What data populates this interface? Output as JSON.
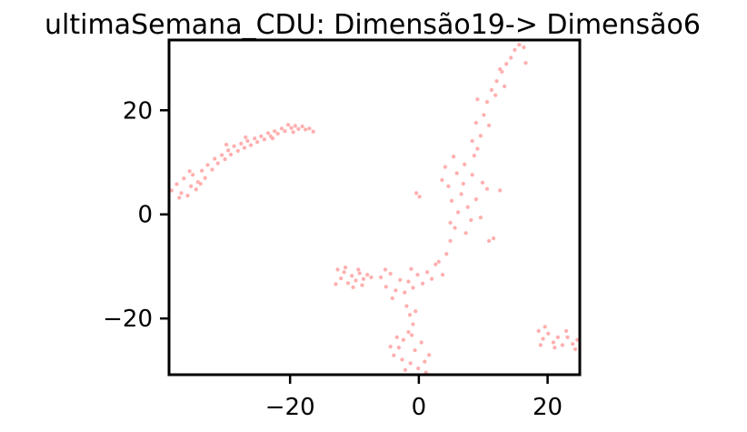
{
  "chart_data": {
    "type": "scatter",
    "title": "ultimaSemana_CDU: Dimensão19-> Dimensão6",
    "xlabel": "",
    "ylabel": "",
    "xlim": [
      -38.8,
      25
    ],
    "ylim": [
      -30.8,
      33.5
    ],
    "grid": false,
    "legend": "none",
    "point_color": "#ff6b6b",
    "x_ticks": [
      {
        "value": -20,
        "label": "−20"
      },
      {
        "value": 0,
        "label": "0"
      },
      {
        "value": 20,
        "label": "20"
      }
    ],
    "y_ticks": [
      {
        "value": -20,
        "label": "−20"
      },
      {
        "value": 0,
        "label": "0"
      },
      {
        "value": 20,
        "label": "20"
      }
    ],
    "points": [
      [
        -38.4,
        4.6
      ],
      [
        -37.6,
        5.8
      ],
      [
        -36.9,
        4.1
      ],
      [
        -36.5,
        6.9
      ],
      [
        -35.9,
        3.6
      ],
      [
        -35.4,
        5.4
      ],
      [
        -35.1,
        7.6
      ],
      [
        -34.6,
        4.8
      ],
      [
        -34.3,
        6.2
      ],
      [
        -33.7,
        8.4
      ],
      [
        -33.2,
        7.0
      ],
      [
        -32.8,
        9.5
      ],
      [
        -32.1,
        8.6
      ],
      [
        -31.7,
        10.7
      ],
      [
        -31.2,
        9.8
      ],
      [
        -30.6,
        11.4
      ],
      [
        -30.1,
        10.6
      ],
      [
        -29.6,
        12.3
      ],
      [
        -29.2,
        11.5
      ],
      [
        -28.7,
        13.1
      ],
      [
        -28.1,
        12.2
      ],
      [
        -27.6,
        13.6
      ],
      [
        -27.1,
        12.8
      ],
      [
        -26.6,
        14.1
      ],
      [
        -26.1,
        13.3
      ],
      [
        -25.5,
        14.6
      ],
      [
        -25.1,
        13.9
      ],
      [
        -24.5,
        15.0
      ],
      [
        -24.0,
        14.4
      ],
      [
        -23.4,
        15.6
      ],
      [
        -23.0,
        15.0
      ],
      [
        -22.4,
        16.0
      ],
      [
        -21.9,
        15.5
      ],
      [
        -21.3,
        16.5
      ],
      [
        -20.8,
        16.0
      ],
      [
        -20.3,
        17.2
      ],
      [
        -19.8,
        16.6
      ],
      [
        -19.2,
        17.0
      ],
      [
        -18.7,
        16.4
      ],
      [
        -18.1,
        16.9
      ],
      [
        -17.6,
        16.3
      ],
      [
        -17.0,
        16.5
      ],
      [
        -16.4,
        15.9
      ],
      [
        -37.2,
        3.2
      ],
      [
        -33.9,
        5.9
      ],
      [
        -29.9,
        13.4
      ],
      [
        -26.9,
        14.8
      ],
      [
        -22.7,
        14.6
      ],
      [
        -19.5,
        15.8
      ],
      [
        -35.6,
        8.3
      ],
      [
        -12.6,
        -10.6
      ],
      [
        -12.1,
        -12.3
      ],
      [
        -11.6,
        -11.1
      ],
      [
        -11.0,
        -13.2
      ],
      [
        -10.4,
        -11.8
      ],
      [
        -9.8,
        -12.7
      ],
      [
        -9.2,
        -11.3
      ],
      [
        -8.6,
        -12.4
      ],
      [
        -8.0,
        -11.6
      ],
      [
        -7.4,
        -12.1
      ],
      [
        -12.9,
        -13.4
      ],
      [
        -10.2,
        -14.0
      ],
      [
        -8.8,
        -13.6
      ],
      [
        -11.4,
        -10.2
      ],
      [
        -9.4,
        -10.6
      ],
      [
        -5.9,
        -12.1
      ],
      [
        -5.1,
        -13.9
      ],
      [
        -4.4,
        -11.4
      ],
      [
        -3.6,
        -14.6
      ],
      [
        -2.9,
        -12.6
      ],
      [
        -2.2,
        -15.0
      ],
      [
        -1.6,
        -12.9
      ],
      [
        -0.9,
        -14.1
      ],
      [
        -0.2,
        -11.6
      ],
      [
        0.6,
        -13.3
      ],
      [
        1.3,
        -11.1
      ],
      [
        2.0,
        -12.4
      ],
      [
        -5.2,
        -10.6
      ],
      [
        -1.2,
        -10.5
      ],
      [
        2.6,
        -9.6
      ],
      [
        -4.1,
        -16.1
      ],
      [
        -1.9,
        -17.6
      ],
      [
        -1.4,
        -19.3
      ],
      [
        -0.9,
        -21.1
      ],
      [
        -1.6,
        -22.6
      ],
      [
        -2.4,
        -24.1
      ],
      [
        -3.1,
        -25.6
      ],
      [
        -3.9,
        -27.1
      ],
      [
        -2.6,
        -27.9
      ],
      [
        -1.3,
        -28.6
      ],
      [
        -0.1,
        -29.6
      ],
      [
        0.9,
        -28.3
      ],
      [
        1.6,
        -27.0
      ],
      [
        -0.6,
        -26.1
      ],
      [
        -3.4,
        -23.6
      ],
      [
        -4.4,
        -25.4
      ],
      [
        0.4,
        -24.6
      ],
      [
        -2.1,
        -29.9
      ],
      [
        1.1,
        -30.4
      ],
      [
        -1.1,
        -23.2
      ],
      [
        -0.5,
        -18.6
      ],
      [
        3.1,
        -9.1
      ],
      [
        3.7,
        -11.6
      ],
      [
        4.3,
        -7.6
      ],
      [
        4.9,
        -5.1
      ],
      [
        5.6,
        -2.6
      ],
      [
        6.1,
        0.4
      ],
      [
        5.1,
        2.6
      ],
      [
        4.6,
        5.4
      ],
      [
        5.9,
        7.9
      ],
      [
        7.1,
        9.6
      ],
      [
        6.6,
        3.9
      ],
      [
        7.6,
        1.4
      ],
      [
        8.1,
        -1.1
      ],
      [
        8.9,
        2.9
      ],
      [
        9.6,
        -0.6
      ],
      [
        7.3,
        -3.6
      ],
      [
        4.1,
        9.1
      ],
      [
        5.4,
        11.1
      ],
      [
        8.6,
        11.3
      ],
      [
        9.9,
        6.1
      ],
      [
        3.6,
        6.6
      ],
      [
        6.9,
        5.9
      ],
      [
        8.3,
        7.6
      ],
      [
        10.6,
        4.9
      ],
      [
        10.9,
        -5.1
      ],
      [
        11.6,
        -4.6
      ],
      [
        12.6,
        4.6
      ],
      [
        0.1,
        3.4
      ],
      [
        -0.4,
        4.1
      ],
      [
        4.9,
        -1.6
      ],
      [
        9.1,
        12.6
      ],
      [
        9.6,
        15.1
      ],
      [
        8.9,
        17.6
      ],
      [
        10.1,
        19.1
      ],
      [
        10.6,
        21.6
      ],
      [
        11.3,
        23.9
      ],
      [
        12.1,
        25.6
      ],
      [
        12.9,
        27.4
      ],
      [
        13.6,
        28.9
      ],
      [
        14.3,
        30.1
      ],
      [
        14.9,
        31.6
      ],
      [
        15.6,
        32.6
      ],
      [
        16.3,
        32.1
      ],
      [
        16.6,
        29.1
      ],
      [
        9.1,
        22.1
      ],
      [
        11.9,
        22.9
      ],
      [
        13.3,
        24.6
      ],
      [
        8.3,
        14.1
      ],
      [
        10.9,
        17.1
      ],
      [
        12.6,
        27.9
      ],
      [
        18.6,
        -22.4
      ],
      [
        19.3,
        -23.9
      ],
      [
        20.1,
        -22.9
      ],
      [
        20.9,
        -24.6
      ],
      [
        21.6,
        -23.6
      ],
      [
        22.3,
        -25.1
      ],
      [
        23.1,
        -23.6
      ],
      [
        23.9,
        -24.9
      ],
      [
        24.6,
        -24.1
      ],
      [
        19.6,
        -21.6
      ],
      [
        21.1,
        -25.6
      ],
      [
        22.9,
        -22.4
      ],
      [
        24.3,
        -25.9
      ],
      [
        18.9,
        -25.1
      ]
    ]
  }
}
